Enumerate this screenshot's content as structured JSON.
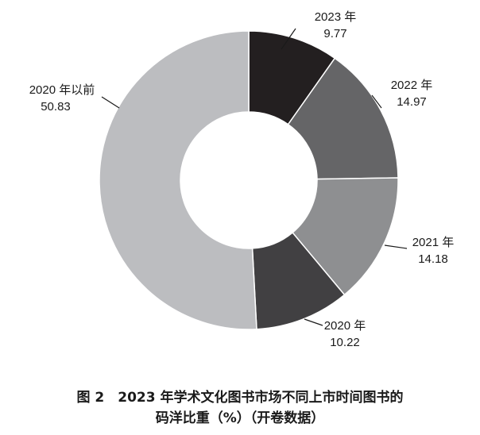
{
  "chart_data": {
    "type": "pie",
    "donut": true,
    "slices": [
      {
        "label": "2023 年",
        "value": 9.77,
        "value_text": "9.77",
        "color": "#231f20"
      },
      {
        "label": "2022 年",
        "value": 14.97,
        "value_text": "14.97",
        "color": "#656567"
      },
      {
        "label": "2021 年",
        "value": 14.18,
        "value_text": "14.18",
        "color": "#8e8f91"
      },
      {
        "label": "2020 年",
        "value": 10.22,
        "value_text": "10.22",
        "color": "#414042"
      },
      {
        "label": "2020 年以前",
        "value": 50.83,
        "value_text": "50.83",
        "color": "#bcbdc0"
      }
    ]
  },
  "caption": {
    "line1": "图 2　2023 年学术文化图书市场不同上市时间图书的",
    "line2": "码洋比重（%）（开卷数据）"
  }
}
